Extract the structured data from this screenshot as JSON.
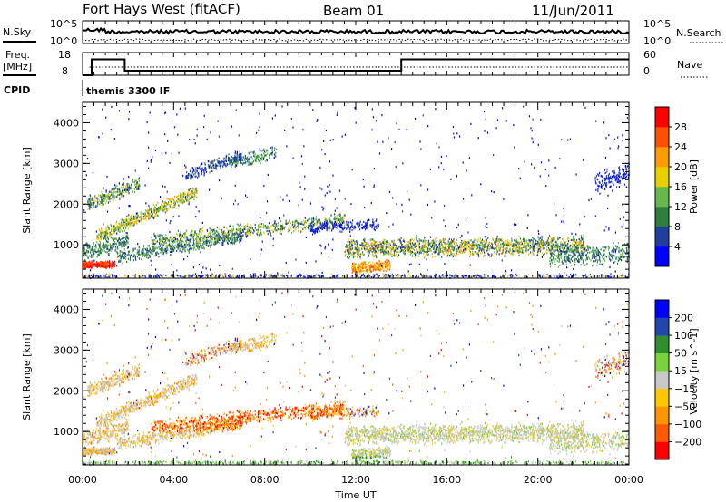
{
  "header": {
    "station": "Fort Hays West (fitACF)",
    "beam": "Beam 01",
    "date": "11/Jun/2011"
  },
  "strip_labels": {
    "nsky": "N.Sky",
    "nsearch": "N.Search",
    "freq": "Freq.",
    "freq_unit": "[MHz]",
    "nave": "Nave",
    "cpid": "CPID",
    "cpid_value": "themis 3300 IF"
  },
  "strip_ticks": {
    "nsky": [
      "10^5",
      "10^0"
    ],
    "nsearch": [
      "10^5",
      "10^0"
    ],
    "freq": [
      "18",
      "8"
    ],
    "nave": [
      "60",
      "0"
    ]
  },
  "colors": {
    "power": [
      "#0000ff",
      "#1e3fa0",
      "#2f7f3c",
      "#66b84a",
      "#e8d000",
      "#ff9a00",
      "#ff5000",
      "#ff0000"
    ],
    "velocity": [
      "#ff0000",
      "#ff5a00",
      "#ff9600",
      "#ffc800",
      "#c8c8c8",
      "#7bd33a",
      "#2f8f2f",
      "#2047b0",
      "#0000ff"
    ]
  },
  "chart_data": [
    {
      "type": "heatmap",
      "quantity": "Power",
      "ylabel": "Slant Range [km]",
      "xlabel": "",
      "xlim": [
        0,
        24
      ],
      "ylim": [
        180,
        4500
      ],
      "xticks": [
        "00:00",
        "04:00",
        "08:00",
        "12:00",
        "16:00",
        "20:00",
        "00:00"
      ],
      "yticks": [
        1000,
        2000,
        3000,
        4000
      ],
      "colorbar": {
        "label": "Power [dB]",
        "range": [
          0,
          32
        ],
        "ticks": [
          4,
          8,
          12,
          16,
          20,
          24,
          28
        ]
      }
    },
    {
      "type": "heatmap",
      "quantity": "Velocity",
      "ylabel": "Slant Range [km]",
      "xlabel": "Time UT",
      "xlim": [
        0,
        24
      ],
      "ylim": [
        180,
        4500
      ],
      "xticks": [
        "00:00",
        "04:00",
        "08:00",
        "12:00",
        "16:00",
        "20:00",
        "00:00"
      ],
      "yticks": [
        1000,
        2000,
        3000,
        4000
      ],
      "colorbar": {
        "label": "Velocity [m s^-1]",
        "ticks": [
          "200",
          "100",
          "50",
          "15",
          "−15",
          "−50",
          "−100",
          "−200"
        ]
      }
    },
    {
      "type": "line",
      "quantity": "Frequency",
      "x": [
        0,
        0.4,
        0.4,
        1.85,
        1.85,
        14,
        14,
        24
      ],
      "y": [
        8,
        8,
        15,
        15,
        10,
        10,
        15,
        15
      ],
      "ylim": [
        8,
        18
      ]
    }
  ]
}
